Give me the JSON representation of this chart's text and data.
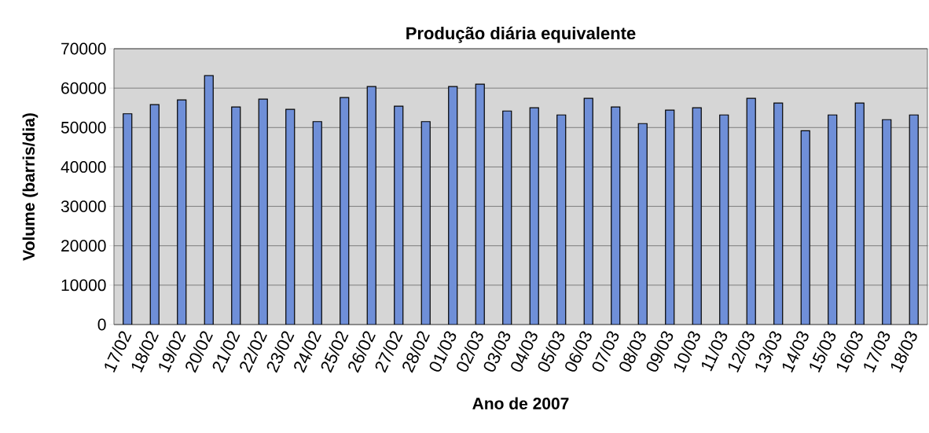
{
  "chart_data": {
    "type": "bar",
    "title": "Produção diária equivalente",
    "xlabel": "Ano de 2007",
    "ylabel": "Volume (barris/dia)",
    "categories": [
      "17/02",
      "18/02",
      "19/02",
      "20/02",
      "21/02",
      "22/02",
      "23/02",
      "24/02",
      "25/02",
      "26/02",
      "27/02",
      "28/02",
      "01/03",
      "02/03",
      "03/03",
      "04/03",
      "05/03",
      "06/03",
      "07/03",
      "08/03",
      "09/03",
      "10/03",
      "11/03",
      "12/03",
      "13/03",
      "14/03",
      "15/03",
      "16/03",
      "17/03",
      "18/03"
    ],
    "values": [
      53500,
      55800,
      57000,
      63200,
      55200,
      57200,
      54600,
      51500,
      57600,
      60400,
      55400,
      51500,
      60400,
      61000,
      54200,
      55000,
      53200,
      57400,
      55200,
      51000,
      54400,
      55000,
      53200,
      57400,
      56200,
      49200,
      53200,
      56200,
      52000,
      53200
    ],
    "color": "#6f8fd8",
    "ylim": [
      0,
      70000
    ],
    "yticks": [
      0,
      10000,
      20000,
      30000,
      40000,
      50000,
      60000,
      70000
    ],
    "grid": "y"
  }
}
